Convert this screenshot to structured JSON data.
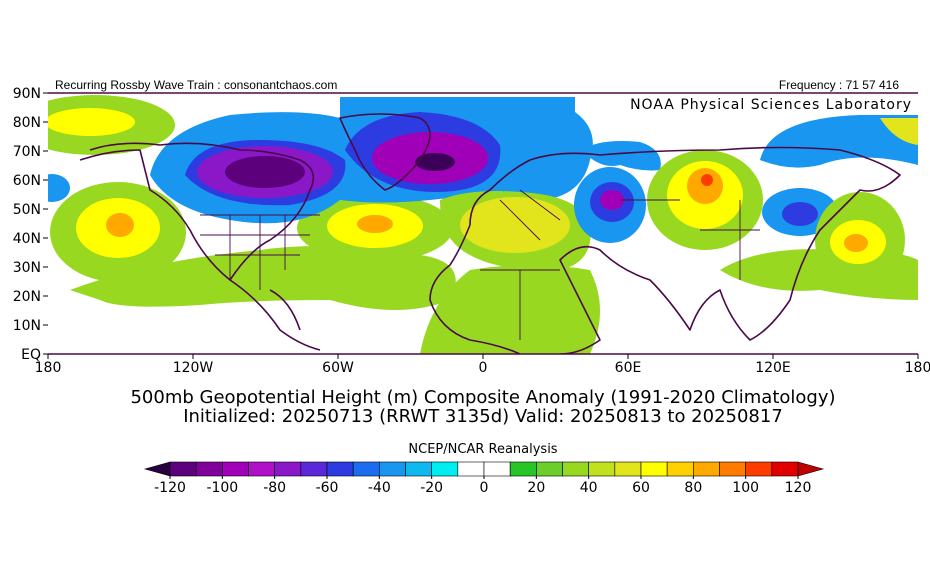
{
  "header": {
    "left": "Recurring Rossby Wave Train : consonantchaos.com",
    "right": "Frequency : 71 57 416",
    "credit": "NOAA Physical Sciences Laboratory"
  },
  "map": {
    "lat_labels": [
      "90N",
      "80N",
      "70N",
      "60N",
      "50N",
      "40N",
      "30N",
      "20N",
      "10N",
      "EQ"
    ],
    "lon_labels": [
      "180",
      "120W",
      "60W",
      "0",
      "60E",
      "120E",
      "180"
    ]
  },
  "title": [
    "500mb Geopotential Height (m) Composite Anomaly (1991-2020 Climatology)",
    "Initialized: 20250713 (RRWT 3135d) Valid: 20250813 to 20250817"
  ],
  "colorbar": {
    "label": "NCEP/NCAR Reanalysis",
    "levels": [
      -120,
      -110,
      -100,
      -90,
      -80,
      -70,
      -60,
      -50,
      -40,
      -30,
      -20,
      -10,
      0,
      10,
      20,
      30,
      40,
      50,
      60,
      70,
      80,
      90,
      100,
      110,
      120
    ],
    "colors": [
      "#3c0058",
      "#5c007c",
      "#80009c",
      "#a000b8",
      "#b010c8",
      "#8a18c8",
      "#5a28d8",
      "#2c3ce0",
      "#1c6cf0",
      "#1896f0",
      "#10b8f0",
      "#00eef0",
      "#ffffff",
      "#ffffff",
      "#28c428",
      "#6cce2c",
      "#98d820",
      "#c0e020",
      "#e2e41c",
      "#ffff00",
      "#ffd000",
      "#ffa800",
      "#ff7c00",
      "#ff3c00",
      "#e00000"
    ],
    "under_color": "#2a0040",
    "over_color": "#c00000",
    "ticks": [
      -120,
      -100,
      -80,
      -60,
      -40,
      -20,
      0,
      20,
      40,
      60,
      80,
      100,
      120
    ]
  }
}
